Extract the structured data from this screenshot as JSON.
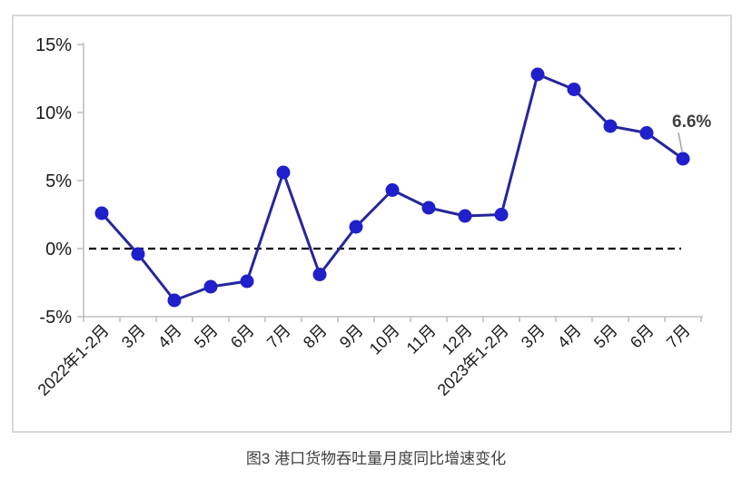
{
  "figure": {
    "title": "图3 港口货物吞吐量月度同比增速变化"
  },
  "chart_data": {
    "type": "line",
    "categories": [
      "2022年1-2月",
      "3月",
      "4月",
      "5月",
      "6月",
      "7月",
      "8月",
      "9月",
      "10月",
      "11月",
      "12月",
      "2023年1-2月",
      "3月",
      "4月",
      "5月",
      "6月",
      "7月"
    ],
    "values": [
      2.6,
      -0.4,
      -3.8,
      -2.8,
      -2.4,
      5.6,
      -1.9,
      1.6,
      4.3,
      3.0,
      2.4,
      2.5,
      12.8,
      11.7,
      9.0,
      8.5,
      6.6
    ],
    "title": "图3 港口货物吞吐量月度同比增速变化",
    "xlabel": "",
    "ylabel": "",
    "ylim": [
      -5,
      15
    ],
    "yticks": [
      15,
      10,
      5,
      0,
      -5
    ],
    "ytick_labels": [
      "15%",
      "10%",
      "5%",
      "0%",
      "-5%"
    ],
    "xtick_rotation": 45,
    "grid": false,
    "legend": "none",
    "zero_line": "dashed",
    "annotation": {
      "text": "6.6%",
      "point_index": 16
    },
    "colors": {
      "line": "#26269B",
      "marker": "#1F1FCC",
      "axis": "#BFBFBF",
      "border": "#D9D9D9",
      "zero_line": "#000000",
      "tick_text": "#1A1A1A",
      "annotation_text": "#404040",
      "leader_line": "#A6A6A6",
      "caption_text": "#404040"
    }
  }
}
